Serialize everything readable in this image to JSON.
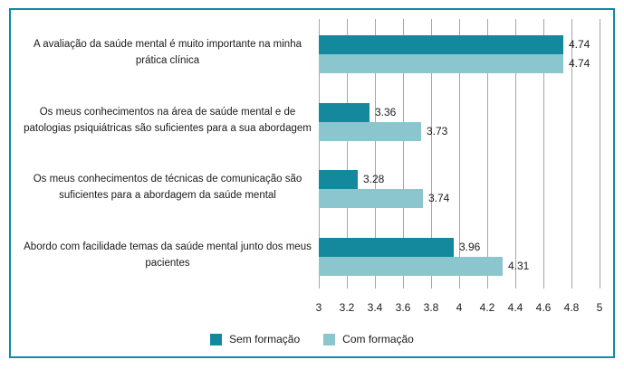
{
  "chart_data": {
    "type": "bar",
    "orientation": "horizontal",
    "title": "",
    "xlabel": "",
    "ylabel": "",
    "xlim": [
      3,
      5
    ],
    "x_ticks": [
      "3",
      "3.2",
      "3.4",
      "3.6",
      "3.8",
      "4",
      "4.2",
      "4.4",
      "4.6",
      "4.8",
      "5"
    ],
    "grid": true,
    "value_labels": true,
    "legend_position": "bottom",
    "categories": [
      "A avaliação da saúde mental é muito importante na minha prática clínica",
      "Os meus conhecimentos na área de saúde mental e de patologias psiquiátricas são suficientes para a sua abordagem",
      "Os meus conhecimentos de técnicas de comunicação são suficientes para a abordagem da saúde mental",
      "Abordo com facilidade temas da saúde mental junto dos meus pacientes"
    ],
    "series": [
      {
        "name": "Sem formação",
        "color": "#14899e",
        "values": [
          4.74,
          3.36,
          3.28,
          3.96
        ]
      },
      {
        "name": "Com formação",
        "color": "#8bc5ce",
        "values": [
          4.74,
          3.73,
          3.74,
          4.31
        ]
      }
    ],
    "style": {
      "frame_border_color": "#1787a5",
      "gridline_color": "#a6a6a6",
      "text_color": "#1a1a1a"
    }
  }
}
